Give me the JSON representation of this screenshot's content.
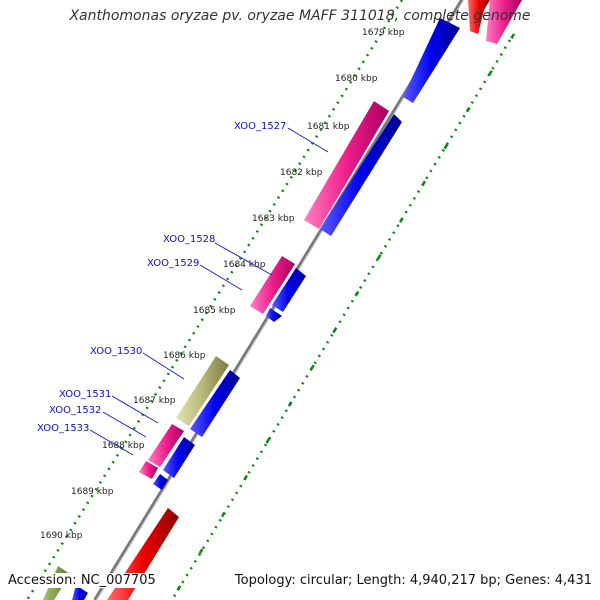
{
  "title": "Xanthomonas oryzae pv. oryzae MAFF 311018, complete genome",
  "footer": {
    "accession": "Accession: NC_007705",
    "topology": "Topology: circular; Length: 4,940,217 bp; Genes: 4,431"
  },
  "kbp_labels": [
    "1679 kbp",
    "1680 kbp",
    "1681 kbp",
    "1682 kbp",
    "1683 kbp",
    "1684 kbp",
    "1685 kbp",
    "1686 kbp",
    "1687 kbp",
    "1688 kbp",
    "1689 kbp",
    "1690 kbp"
  ],
  "gene_labels": [
    "XOO_1527",
    "XOO_1528",
    "XOO_1529",
    "XOO_1530",
    "XOO_1531",
    "XOO_1532",
    "XOO_1533"
  ],
  "colors": {
    "pink": "#ee1e8c",
    "blue": "#0000ee",
    "red": "#ee0000",
    "olive": "#b8b878",
    "backbone": "#888888",
    "ticks": "#118811",
    "label": "#1010c8"
  }
}
